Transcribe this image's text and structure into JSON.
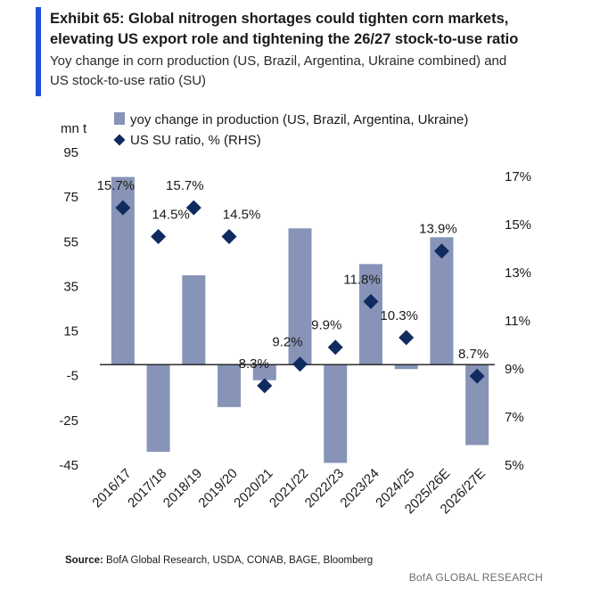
{
  "header": {
    "title_line1": "Exhibit 65: Global nitrogen shortages could tighten corn markets,",
    "title_line2": "elevating US export role and tightening the 26/27 stock-to-use ratio",
    "subtitle_line1": "Yoy change in corn production (US, Brazil, Argentina, Ukraine combined) and",
    "subtitle_line2": "US stock-to-use ratio (SU)"
  },
  "colors": {
    "accent": "#1f4fd8",
    "bar": "#8794b8",
    "diamond": "#0f2b5f"
  },
  "chart_data": {
    "type": "bar",
    "categories": [
      "2016/17",
      "2017/18",
      "2018/19",
      "2019/20",
      "2020/21",
      "2021/22",
      "2022/23",
      "2023/24",
      "2024/25",
      "2025/26E",
      "2026/27E"
    ],
    "series": [
      {
        "name": "yoy change in production (US, Brazil, Argentina, Ukraine)",
        "type": "bar",
        "axis": "left",
        "values": [
          84,
          -39,
          40,
          -19,
          -7,
          61,
          -44,
          45,
          -2,
          57,
          -36
        ]
      },
      {
        "name": "US SU ratio, % (RHS)",
        "type": "scatter",
        "marker": "diamond",
        "axis": "right",
        "values": [
          15.7,
          14.5,
          15.7,
          14.5,
          8.3,
          9.2,
          9.9,
          11.8,
          10.3,
          13.9,
          8.7
        ],
        "labels": [
          "15.7%",
          "14.5%",
          "15.7%",
          "14.5%",
          "8.3%",
          "9.2%",
          "9.9%",
          "11.8%",
          "10.3%",
          "13.9%",
          "8.7%"
        ]
      }
    ],
    "ylabel": "mn t",
    "ylim": [
      -45,
      95
    ],
    "yticks": [
      "95",
      "75",
      "55",
      "35",
      "15",
      "-5",
      "-25",
      "-45"
    ],
    "y2lim": [
      5,
      17
    ],
    "y2ticks": [
      "17%",
      "15%",
      "13%",
      "11%",
      "9%",
      "7%",
      "5%"
    ],
    "legend_position": "top"
  },
  "footer": {
    "source_label": "Source:",
    "source_text": " BofA Global Research, USDA, CONAB, BAGE, Bloomberg",
    "brand": "BofA GLOBAL RESEARCH"
  }
}
